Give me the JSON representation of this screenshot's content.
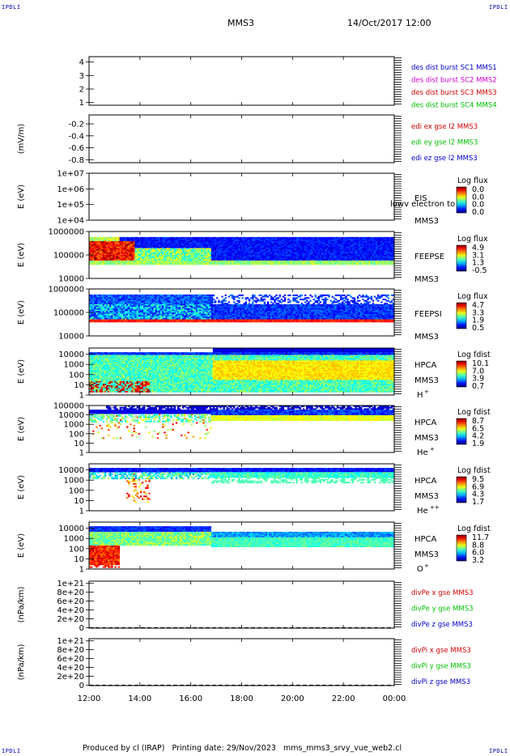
{
  "corner_label": "IPDLI",
  "header": {
    "title": "MMS3",
    "datetime": "14/Oct/2017 12:00"
  },
  "footer": {
    "text": "Produced by cl (IRAP)   Printing date: 29/Nov/2023   mms_mms3_srvy_vue_web2.cl"
  },
  "colors": {
    "blue": "#0000c8",
    "red": "#d00000",
    "green": "#00c000",
    "magenta": "#d000d0"
  },
  "chart_data": {
    "type": "line",
    "x_ticks": [
      "12:00",
      "14:00",
      "16:00",
      "18:00",
      "20:00",
      "22:00",
      "00:00"
    ],
    "xlim": [
      "12:00",
      "00:00"
    ],
    "panels": [
      {
        "ticks": [
          "4",
          "3",
          "2",
          "1"
        ],
        "ylim": [
          0.8,
          4.4
        ],
        "ylabel": "",
        "legend": [
          {
            "text": "des dist burst SC1 MMS1",
            "color": "#0000c8"
          },
          {
            "text": "des dist burst SC2 MMS2",
            "color": "#d000d0"
          },
          {
            "text": "des dist burst SC3 MMS3",
            "color": "#d00000"
          },
          {
            "text": "des dist burst SC4 MMS4",
            "color": "#00c000"
          }
        ]
      },
      {
        "ticks": [
          "-0.2",
          "-0.4",
          "-0.6",
          "-0.8"
        ],
        "ylim": [
          -0.85,
          -0.05
        ],
        "ylabel": "(mV/m)",
        "legend": [
          {
            "text": "edi ex gse l2 MMS3",
            "color": "#d00000"
          },
          {
            "text": "edi ey gse l2 MMS3",
            "color": "#00c000"
          },
          {
            "text": "edi ez gse l2 MMS3",
            "color": "#0000c8"
          }
        ]
      },
      {
        "ticks": [
          "1e+07",
          "1e+06",
          "1e+05",
          "1e+04"
        ],
        "ylim": [
          10000,
          10000000
        ],
        "scale": "log",
        "ylabel": "E (eV)",
        "name": "EIS",
        "sub": "MMS3",
        "overlap": "lowv electron to",
        "cb_title": "Log flux",
        "cb_labels": [
          "0.0",
          "0.0",
          "0.0",
          "0.0"
        ]
      },
      {
        "ticks": [
          "1000000",
          "100000",
          "10000"
        ],
        "ylim": [
          10000,
          1000000
        ],
        "scale": "log",
        "ylabel": "E (eV)",
        "name": "FEEPSE",
        "sub": "MMS3",
        "cb_title": "Log flux",
        "cb_labels": [
          "4.9",
          "3.1",
          "1.3",
          "-0.5"
        ]
      },
      {
        "ticks": [
          "1000000",
          "100000",
          "10000"
        ],
        "ylim": [
          10000,
          1000000
        ],
        "scale": "log",
        "ylabel": "E (eV)",
        "name": "FEEPSI",
        "sub": "MMS3",
        "cb_title": "Log flux",
        "cb_labels": [
          "4.7",
          "3.3",
          "1.9",
          "0.5"
        ]
      },
      {
        "ticks": [
          "10000",
          "1000",
          "100",
          "10",
          "1"
        ],
        "ylim": [
          1,
          40000
        ],
        "scale": "log",
        "ylabel": "E (eV)",
        "name": "HPCA",
        "sub": "MMS3",
        "species": "H",
        "sup": "+",
        "cb_title": "Log fdist",
        "cb_labels": [
          "10.1",
          "7.0",
          "3.9",
          "0.7"
        ]
      },
      {
        "ticks": [
          "100000",
          "10000",
          "1000",
          "100",
          "10",
          "1"
        ],
        "ylim": [
          1,
          100000
        ],
        "scale": "log",
        "ylabel": "E (eV)",
        "name": "HPCA",
        "sub": "MMS3",
        "species": "He",
        "sup": "+",
        "cb_title": "Log fdist",
        "cb_labels": [
          "8.7",
          "6.5",
          "4.2",
          "1.9"
        ]
      },
      {
        "ticks": [
          "10000",
          "1000",
          "100",
          "10",
          "1"
        ],
        "ylim": [
          1,
          40000
        ],
        "scale": "log",
        "ylabel": "E (eV)",
        "name": "HPCA",
        "sub": "MMS3",
        "species": "He",
        "sup": "++",
        "cb_title": "Log fdist",
        "cb_labels": [
          "9.5",
          "6.9",
          "4.3",
          "1.7"
        ]
      },
      {
        "ticks": [
          "10000",
          "1000",
          "100",
          "10",
          "1"
        ],
        "ylim": [
          1,
          40000
        ],
        "scale": "log",
        "ylabel": "E (eV)",
        "name": "HPCA",
        "sub": "MMS3",
        "species": "O",
        "sup": "+",
        "cb_title": "Log fdist",
        "cb_labels": [
          "11.7",
          "8.8",
          "6.0",
          "3.2"
        ]
      },
      {
        "ticks": [
          "1e+21",
          "8e+20",
          "6e+20",
          "4e+20",
          "2e+20",
          "0"
        ],
        "ylim": [
          -1e+19,
          1.05e+21
        ],
        "ylabel": "(nPa/km)",
        "zero_line": true,
        "legend": [
          {
            "text": "divPe x gse MMS3",
            "color": "#d00000"
          },
          {
            "text": "divPe y gse MMS3",
            "color": "#00c000"
          },
          {
            "text": "divPe z gse MMS3",
            "color": "#0000c8"
          }
        ]
      },
      {
        "ticks": [
          "1e+21",
          "8e+20",
          "6e+20",
          "4e+20",
          "2e+20",
          "0"
        ],
        "ylim": [
          -1e+19,
          1.05e+21
        ],
        "ylabel": "(nPa/km)",
        "zero_line": true,
        "legend": [
          {
            "text": "divPi x gse MMS3",
            "color": "#d00000"
          },
          {
            "text": "divPi y gse MMS3",
            "color": "#00c000"
          },
          {
            "text": "divPi z gse MMS3",
            "color": "#0000c8"
          }
        ]
      }
    ]
  }
}
